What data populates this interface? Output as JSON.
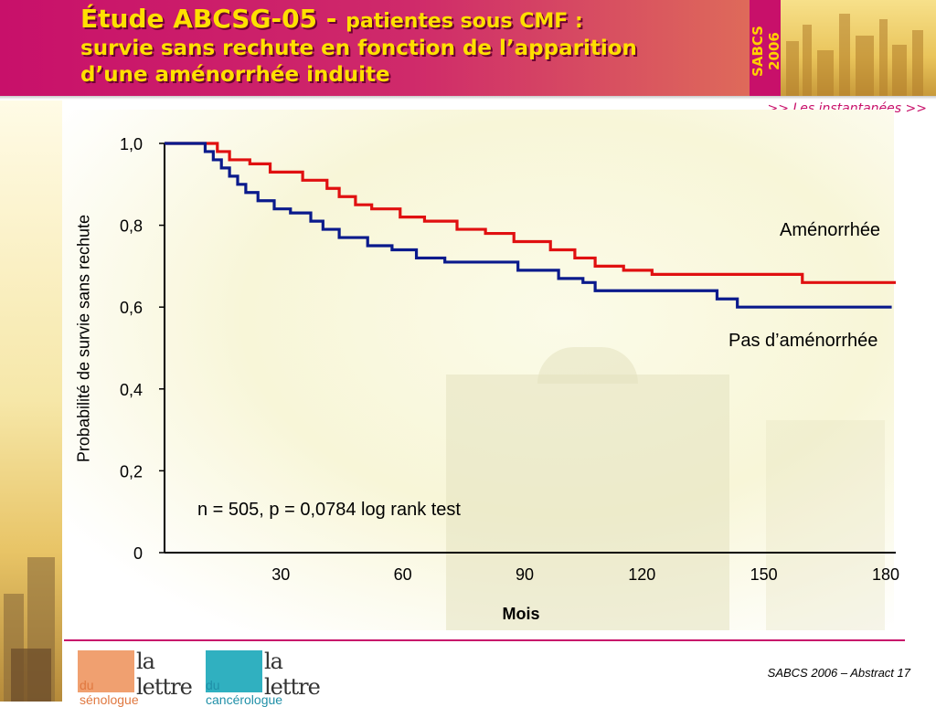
{
  "header": {
    "title_line1_bold": "Étude ABCSG-05 - ",
    "title_line1_rest": "patientes sous CMF :",
    "title_line2": "survie sans rechute en fonction de l’apparition",
    "title_line3": "d’une aménorrhée induite",
    "sabcs_vertical": "SABCS 2006",
    "instantanees": ">> Les instantanées >>"
  },
  "footer": {
    "reference": "SABCS 2006 – Abstract 17",
    "logo1_main": "la lettre",
    "logo1_sub": "du sénologue",
    "logo2_main": "la lettre",
    "logo2_sub": "du cancérologue"
  },
  "colors": {
    "magenta": "#c8106a",
    "title_yellow": "#ffe000",
    "amenorrhee": "#e01010",
    "pas_amenorrhee": "#0a1a8c",
    "logo1": "#f0a070",
    "logo2": "#30b0c0"
  },
  "chart_data": {
    "type": "line",
    "subtype": "kaplan-meier step",
    "xlabel": "Mois",
    "ylabel": "Probabilité de survie sans rechute",
    "xlim": [
      0,
      180
    ],
    "ylim": [
      0,
      1.0
    ],
    "x_ticks": [
      30,
      60,
      90,
      120,
      150,
      180
    ],
    "x_tick_labels": [
      "30",
      "60",
      "90",
      "120",
      "150",
      "180"
    ],
    "y_ticks": [
      0,
      0.2,
      0.4,
      0.6,
      0.8,
      1.0
    ],
    "y_tick_labels": [
      "0",
      "0,2",
      "0,4",
      "0,6",
      "0,8",
      "1,0"
    ],
    "annotation": "n = 505, p = 0,0784 log rank test",
    "series": [
      {
        "name": "Aménorrhée",
        "color": "#e01010",
        "steps": [
          [
            0,
            1.0
          ],
          [
            8,
            1.0
          ],
          [
            13,
            0.98
          ],
          [
            16,
            0.96
          ],
          [
            21,
            0.95
          ],
          [
            26,
            0.93
          ],
          [
            34,
            0.91
          ],
          [
            40,
            0.89
          ],
          [
            43,
            0.87
          ],
          [
            47,
            0.85
          ],
          [
            51,
            0.84
          ],
          [
            58,
            0.82
          ],
          [
            64,
            0.81
          ],
          [
            72,
            0.79
          ],
          [
            79,
            0.78
          ],
          [
            86,
            0.76
          ],
          [
            95,
            0.74
          ],
          [
            101,
            0.72
          ],
          [
            106,
            0.7
          ],
          [
            113,
            0.69
          ],
          [
            120,
            0.68
          ],
          [
            157,
            0.66
          ],
          [
            180,
            0.66
          ]
        ]
      },
      {
        "name": "Pas d’aménorrhée",
        "color": "#0a1a8c",
        "steps": [
          [
            0,
            1.0
          ],
          [
            8,
            1.0
          ],
          [
            10,
            0.98
          ],
          [
            12,
            0.96
          ],
          [
            14,
            0.94
          ],
          [
            16,
            0.92
          ],
          [
            18,
            0.9
          ],
          [
            20,
            0.88
          ],
          [
            23,
            0.86
          ],
          [
            27,
            0.84
          ],
          [
            31,
            0.83
          ],
          [
            36,
            0.81
          ],
          [
            39,
            0.79
          ],
          [
            43,
            0.77
          ],
          [
            50,
            0.75
          ],
          [
            56,
            0.74
          ],
          [
            62,
            0.72
          ],
          [
            69,
            0.71
          ],
          [
            87,
            0.69
          ],
          [
            97,
            0.67
          ],
          [
            103,
            0.66
          ],
          [
            106,
            0.64
          ],
          [
            136,
            0.62
          ],
          [
            141,
            0.6
          ],
          [
            179,
            0.6
          ]
        ]
      }
    ]
  }
}
